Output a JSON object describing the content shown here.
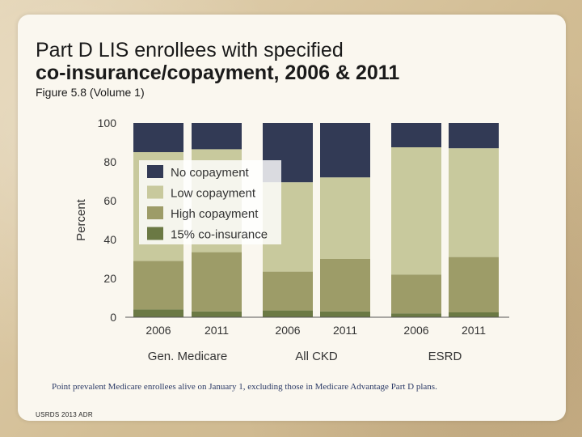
{
  "slide": {
    "title_line1": "Part D LIS enrollees with specified",
    "title_line2": "co-insurance/copayment, 2006 & 2011",
    "subtitle": "Figure 5.8 (Volume 1)",
    "footnote": "Point prevalent Medicare enrollees alive on January 1, excluding those in Medicare Advantage Part D plans.",
    "source": "USRDS 2013 ADR"
  },
  "colors": {
    "No copayment": "#323a55",
    "Low copayment": "#c8c99d",
    "High copayment": "#9d9c68",
    "15% co-insurance": "#6b7944"
  },
  "chart_data": {
    "type": "bar",
    "stacked": true,
    "title": "",
    "ylabel": "Percent",
    "xlabel": "",
    "ylim": [
      0,
      100
    ],
    "yticks": [
      0,
      20,
      40,
      60,
      80,
      100
    ],
    "grid": false,
    "legend_position": "upper-left inside plot",
    "groups": [
      {
        "name": "Gen. Medicare",
        "categories": [
          "2006",
          "2011"
        ]
      },
      {
        "name": "All CKD",
        "categories": [
          "2006",
          "2011"
        ]
      },
      {
        "name": "ESRD",
        "categories": [
          "2006",
          "2011"
        ]
      }
    ],
    "categories": [
      "2006",
      "2011",
      "2006",
      "2011",
      "2006",
      "2011"
    ],
    "series": [
      {
        "name": "15% co-insurance",
        "values": [
          4,
          3,
          3.5,
          3,
          2,
          2.5
        ]
      },
      {
        "name": "High copayment",
        "values": [
          25,
          30.5,
          20,
          27,
          20,
          28.5
        ]
      },
      {
        "name": "Low copayment",
        "values": [
          56,
          53,
          46,
          42,
          65.5,
          56
        ]
      },
      {
        "name": "No copayment",
        "values": [
          15,
          13.5,
          30.5,
          28,
          12.5,
          13
        ]
      }
    ],
    "legend_order": [
      "No copayment",
      "Low copayment",
      "High copayment",
      "15% co-insurance"
    ]
  }
}
